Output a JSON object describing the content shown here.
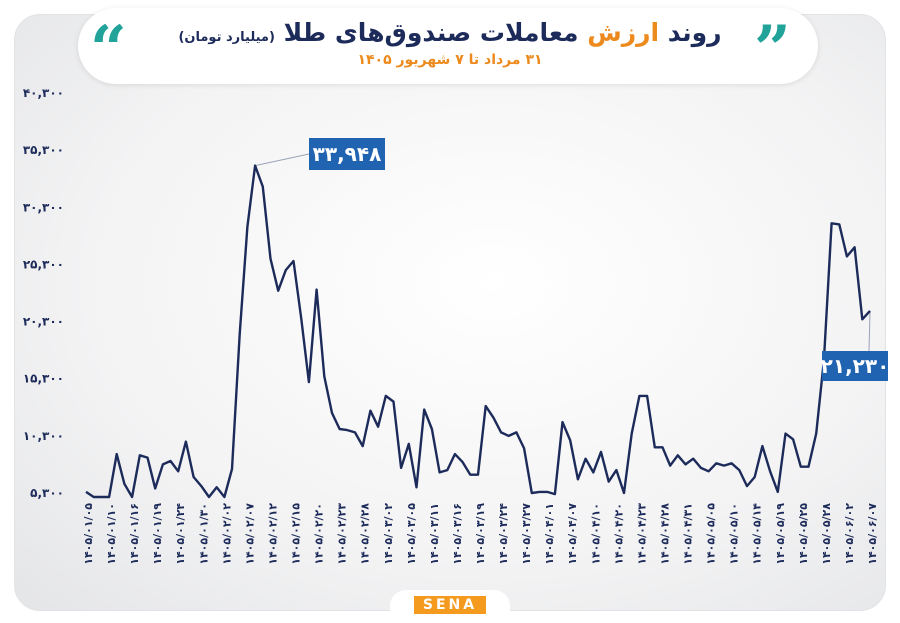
{
  "header": {
    "title_part1": "روند",
    "title_accent": "ارزش",
    "title_part2": "معاملات صندوق‌های طلا",
    "title_note": "(میلیارد تومان)",
    "subtitle": "۳۱ مرداد تا ۷ شهریور ۱۴۰۵"
  },
  "logo": {
    "text": "SENA"
  },
  "colors": {
    "line": "#1d2b5a",
    "accent": "#ec8a1e",
    "label_bg": "#1f63b1",
    "quote": "#22a39a"
  },
  "chart_data": {
    "type": "line",
    "title": "روند ارزش معاملات صندوق‌های طلا (میلیارد تومان)",
    "ylim": [
      5300,
      40300
    ],
    "y_ticks": [
      5300,
      10300,
      15300,
      20300,
      25300,
      30300,
      35300,
      40300
    ],
    "y_tick_labels": [
      "۵,۳۰۰",
      "۱۰,۳۰۰",
      "۱۵,۳۰۰",
      "۲۰,۳۰۰",
      "۲۵,۳۰۰",
      "۳۰,۳۰۰",
      "۳۵,۳۰۰",
      "۴۰,۳۰۰"
    ],
    "grid": false,
    "x_tick_labels": [
      "۱۴۰۵/۰۱/۰۵",
      "۱۴۰۵/۰۱/۱۰",
      "۱۴۰۵/۰۱/۱۶",
      "۱۴۰۵/۰۱/۱۹",
      "۱۴۰۵/۰۱/۲۴",
      "۱۴۰۵/۰۱/۳۰",
      "۱۴۰۵/۰۲/۰۲",
      "۱۴۰۵/۰۲/۰۷",
      "۱۴۰۵/۰۲/۱۲",
      "۱۴۰۵/۰۲/۱۵",
      "۱۴۰۵/۰۲/۲۰",
      "۱۴۰۵/۰۲/۲۳",
      "۱۴۰۵/۰۲/۲۸",
      "۱۴۰۵/۰۳/۰۲",
      "۱۴۰۵/۰۳/۰۵",
      "۱۴۰۵/۰۳/۱۱",
      "۱۴۰۵/۰۳/۱۶",
      "۱۴۰۵/۰۳/۱۹",
      "۱۴۰۵/۰۳/۲۴",
      "۱۴۰۵/۰۳/۲۷",
      "۱۴۰۵/۰۴/۰۱",
      "۱۴۰۵/۰۴/۰۷",
      "۱۴۰۵/۰۴/۱۰",
      "۱۴۰۵/۰۴/۲۰",
      "۱۴۰۵/۰۴/۲۳",
      "۱۴۰۵/۰۴/۲۸",
      "۱۴۰۵/۰۴/۳۱",
      "۱۴۰۵/۰۵/۰۵",
      "۱۴۰۵/۰۵/۱۰",
      "۱۴۰۵/۰۵/۱۴",
      "۱۴۰۵/۰۵/۱۹",
      "۱۴۰۵/۰۵/۲۵",
      "۱۴۰۵/۰۵/۲۸",
      "۱۴۰۵/۰۶/۰۲",
      "۱۴۰۵/۰۶/۰۷"
    ],
    "values": [
      5400,
      4200,
      3400,
      4800,
      8700,
      6100,
      4900,
      8600,
      8400,
      5700,
      7800,
      8100,
      7200,
      9800,
      6700,
      5900,
      4700,
      5800,
      4900,
      7400,
      19200,
      28600,
      33948,
      32100,
      25800,
      23000,
      24800,
      25600,
      20600,
      15000,
      23100,
      15500,
      12300,
      10900,
      10800,
      10600,
      9400,
      12500,
      11100,
      13800,
      13300,
      7500,
      9600,
      5800,
      12600,
      10900,
      7100,
      7300,
      8700,
      8000,
      6900,
      6900,
      12900,
      11900,
      10600,
      10300,
      10600,
      9200,
      5300,
      5400,
      5400,
      5200,
      11500,
      9900,
      6500,
      8300,
      7100,
      8900,
      6300,
      7300,
      5300,
      10500,
      13800,
      13800,
      9300,
      9300,
      7700,
      8600,
      7800,
      8300,
      7500,
      7200,
      7900,
      7700,
      7900,
      7300,
      5900,
      6700,
      9400,
      7200,
      5400,
      10500,
      10000,
      7600,
      7600,
      10500,
      16900,
      28900,
      28800,
      26000,
      26800,
      20500,
      21230
    ],
    "annotations": [
      {
        "label": "۳۳,۹۴۸",
        "value": 33948,
        "index": 22
      },
      {
        "label": "۲۱,۲۳۰",
        "value": 21230,
        "index": 102
      }
    ]
  }
}
